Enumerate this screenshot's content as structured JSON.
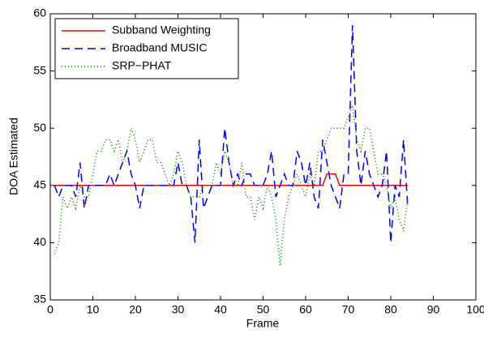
{
  "chart_data": {
    "type": "line",
    "xlabel": "Frame",
    "ylabel": "DOA Estimated",
    "x": [
      1,
      2,
      3,
      4,
      5,
      6,
      7,
      8,
      9,
      10,
      11,
      12,
      13,
      14,
      15,
      16,
      17,
      18,
      19,
      20,
      21,
      22,
      23,
      24,
      25,
      26,
      27,
      28,
      29,
      30,
      31,
      32,
      33,
      34,
      35,
      36,
      37,
      38,
      39,
      40,
      41,
      42,
      43,
      44,
      45,
      46,
      47,
      48,
      49,
      50,
      51,
      52,
      53,
      54,
      55,
      56,
      57,
      58,
      59,
      60,
      61,
      62,
      63,
      64,
      65,
      66,
      67,
      68,
      69,
      70,
      71,
      72,
      73,
      74,
      75,
      76,
      77,
      78,
      79,
      80,
      81,
      82,
      83,
      84
    ],
    "series": [
      {
        "name": "Subband Weighting",
        "color": "#ff0000",
        "style": "solid",
        "values": [
          45,
          45,
          45,
          45,
          45,
          45,
          45,
          45,
          45,
          45,
          45,
          45,
          45,
          45,
          45,
          45,
          45,
          45,
          45,
          45,
          45,
          45,
          45,
          45,
          45,
          45,
          45,
          45,
          45,
          45,
          45,
          45,
          45,
          45,
          45,
          45,
          45,
          45,
          45,
          45,
          45,
          45,
          45,
          45,
          45,
          45,
          45,
          45,
          45,
          45,
          45,
          45,
          45,
          45,
          45,
          45,
          45,
          45,
          45,
          45,
          45,
          45,
          45,
          45,
          46,
          46,
          46,
          45,
          45,
          45,
          45,
          45,
          45,
          45,
          45,
          45,
          45,
          45,
          45,
          45,
          45,
          45,
          45,
          45
        ]
      },
      {
        "name": "Broadband MUSIC",
        "color": "#0000ff",
        "style": "dashed",
        "values": [
          45,
          44,
          45,
          45,
          45,
          44,
          47,
          43,
          45,
          45,
          45,
          45,
          45,
          46,
          45,
          46,
          47,
          48,
          46,
          45,
          43,
          45,
          45,
          45,
          45,
          45,
          45,
          45,
          45,
          47,
          45,
          45,
          44,
          40,
          49,
          43,
          44,
          45,
          45,
          45,
          50,
          47,
          45,
          46,
          45,
          46,
          46,
          45,
          45,
          45,
          46,
          48,
          44,
          45,
          46,
          45,
          45,
          48,
          47,
          45,
          47,
          44,
          43,
          49,
          47,
          45,
          44,
          43,
          46,
          46,
          59,
          48,
          45,
          48,
          46,
          45,
          44,
          45,
          48,
          40,
          45,
          44,
          49,
          43
        ]
      },
      {
        "name": "SRP−PHAT",
        "color": "#008000",
        "style": "dotted",
        "values": [
          39,
          40,
          44,
          43,
          44,
          43,
          45,
          44,
          44,
          46,
          48,
          48,
          49,
          49,
          48,
          49,
          47,
          48,
          50,
          49,
          47,
          48,
          49,
          49,
          47,
          47,
          46,
          45,
          46,
          48,
          47,
          45,
          44,
          44,
          44,
          45,
          45,
          45,
          47,
          46,
          48,
          47,
          45,
          45,
          47,
          44,
          44,
          42,
          44,
          43,
          45,
          44,
          42,
          38,
          42,
          44,
          45,
          46,
          45,
          44,
          46,
          45,
          48,
          48,
          49,
          50,
          50,
          50,
          50,
          51,
          52,
          49,
          48,
          50,
          50,
          48,
          46,
          46,
          45,
          43,
          44,
          42,
          41,
          44
        ]
      }
    ],
    "xlim": [
      0,
      100
    ],
    "ylim": [
      35,
      60
    ],
    "xticks": [
      0,
      10,
      20,
      30,
      40,
      50,
      60,
      70,
      80,
      90,
      100
    ],
    "yticks": [
      35,
      40,
      45,
      50,
      55,
      60
    ],
    "grid": false,
    "legend": "upper-left"
  }
}
